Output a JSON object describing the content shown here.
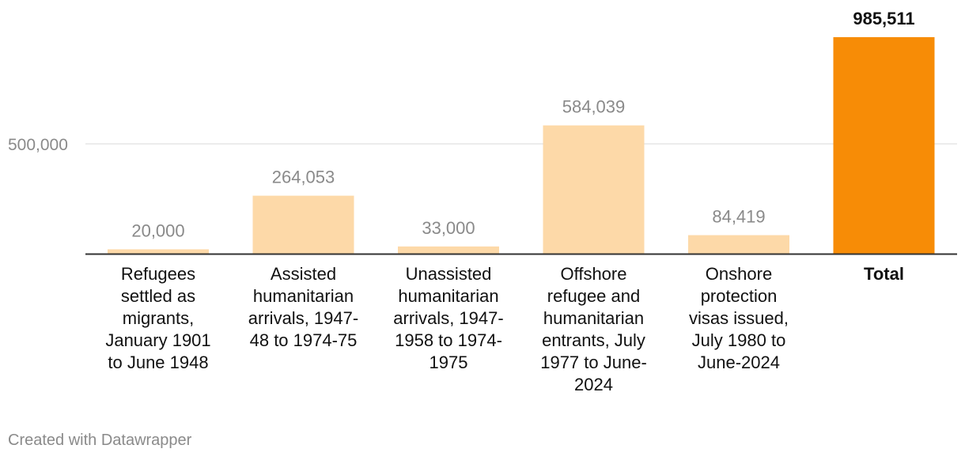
{
  "chart_data": {
    "type": "bar",
    "title": "",
    "xlabel": "",
    "ylabel": "",
    "ylim": [
      0,
      1000000
    ],
    "yticks": [
      500000
    ],
    "ytick_labels": [
      "500,000"
    ],
    "grid": true,
    "categories": [
      [
        "Refugees",
        "settled as",
        "migrants,",
        "January 1901",
        "to June 1948"
      ],
      [
        "Assisted",
        "humanitarian",
        "arrivals, 1947-",
        "48 to 1974-75"
      ],
      [
        "Unassisted",
        "humanitarian",
        "arrivals, 1947-",
        "1958 to 1974-",
        "1975"
      ],
      [
        "Offshore",
        "refugee and",
        "humanitarian",
        "entrants, July",
        "1977 to June-",
        "2024"
      ],
      [
        "Onshore",
        "protection",
        "visas issued,",
        "July 1980 to",
        "June-2024"
      ],
      [
        "Total"
      ]
    ],
    "values": [
      20000,
      264053,
      33000,
      584039,
      84419,
      985511
    ],
    "value_labels": [
      "20,000",
      "264,053",
      "33,000",
      "584,039",
      "84,419",
      "985,511"
    ],
    "highlight": [
      false,
      false,
      false,
      false,
      false,
      true
    ],
    "colors": {
      "bar": "#fdd9a8",
      "highlight_bar": "#f78c06",
      "grid": "#e6e6e6",
      "baseline": "#333333"
    }
  },
  "footer": {
    "credit": "Created with Datawrapper"
  }
}
